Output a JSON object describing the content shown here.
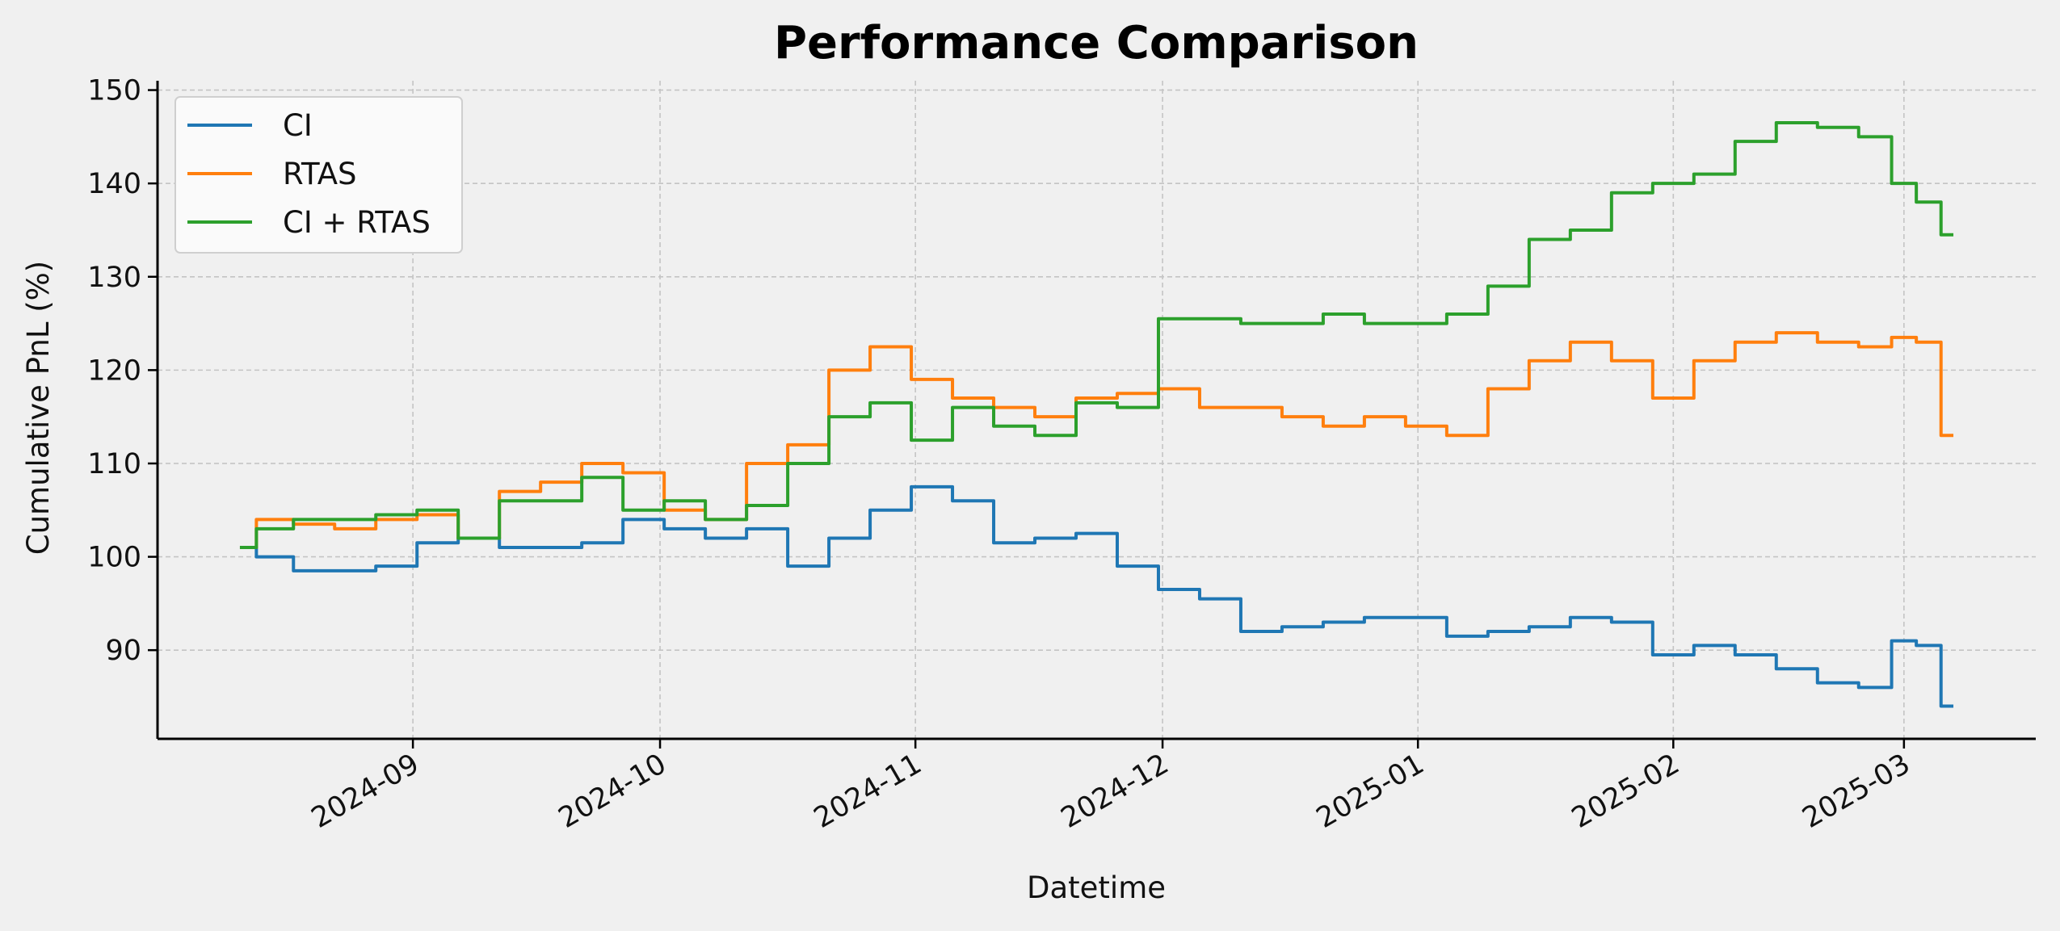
{
  "chart_data": {
    "type": "line",
    "title": "Performance Comparison",
    "xlabel": "Datetime",
    "ylabel": "Cumulative PnL (%)",
    "x_type": "date",
    "xlim": [
      "2024-08-01",
      "2025-03-17"
    ],
    "ylim": [
      80.5,
      151
    ],
    "xticks": [
      "2024-09-01",
      "2024-10-01",
      "2024-11-01",
      "2024-12-01",
      "2025-01-01",
      "2025-02-01",
      "2025-03-01"
    ],
    "xtick_labels": [
      "2024-09",
      "2024-10",
      "2024-11",
      "2024-12",
      "2025-01",
      "2025-02",
      "2025-03"
    ],
    "yticks": [
      90,
      100,
      110,
      120,
      130,
      140,
      150
    ],
    "grid": true,
    "legend_position": "top-left",
    "x": [
      "2024-08-11",
      "2024-08-15",
      "2024-08-20",
      "2024-08-25",
      "2024-08-30",
      "2024-09-04",
      "2024-09-09",
      "2024-09-14",
      "2024-09-19",
      "2024-09-24",
      "2024-09-29",
      "2024-10-04",
      "2024-10-09",
      "2024-10-14",
      "2024-10-19",
      "2024-10-24",
      "2024-10-29",
      "2024-11-03",
      "2024-11-08",
      "2024-11-13",
      "2024-11-18",
      "2024-11-23",
      "2024-11-28",
      "2024-12-03",
      "2024-12-08",
      "2024-12-13",
      "2024-12-18",
      "2024-12-23",
      "2024-12-28",
      "2025-01-02",
      "2025-01-07",
      "2025-01-12",
      "2025-01-17",
      "2025-01-22",
      "2025-01-27",
      "2025-02-01",
      "2025-02-06",
      "2025-02-11",
      "2025-02-16",
      "2025-02-21",
      "2025-02-26",
      "2025-03-01",
      "2025-03-04",
      "2025-03-07"
    ],
    "series": [
      {
        "name": "CI",
        "color": "#1f77b4",
        "values": [
          101,
          100,
          98.5,
          98.5,
          99,
          101.5,
          102,
          101,
          101,
          101.5,
          104,
          103,
          102,
          103,
          99,
          102,
          105,
          107.5,
          106,
          101.5,
          102,
          102.5,
          99,
          96.5,
          95.5,
          92,
          92.5,
          93,
          93.5,
          93.5,
          91.5,
          92,
          92.5,
          93.5,
          93,
          89.5,
          90.5,
          89.5,
          88,
          86.5,
          86,
          91,
          90.5,
          84
        ]
      },
      {
        "name": "RTAS",
        "color": "#ff7f0e",
        "values": [
          101,
          104,
          103.5,
          103,
          104,
          104.5,
          102,
          107,
          108,
          110,
          109,
          105,
          104,
          110,
          112,
          120,
          122.5,
          119,
          117,
          116,
          115,
          117,
          117.5,
          118,
          116,
          116,
          115,
          114,
          115,
          114,
          113,
          118,
          121,
          123,
          121,
          117,
          121,
          123,
          124,
          123,
          122.5,
          123.5,
          123,
          113
        ]
      },
      {
        "name": "CI + RTAS",
        "color": "#2ca02c",
        "values": [
          101,
          103,
          104,
          104,
          104.5,
          105,
          102,
          106,
          106,
          108.5,
          105,
          106,
          104,
          105.5,
          110,
          115,
          116.5,
          112.5,
          116,
          114,
          113,
          116.5,
          116,
          125.5,
          125.5,
          125,
          125,
          126,
          125,
          125,
          126,
          129,
          134,
          135,
          139,
          140,
          141,
          144.5,
          146.5,
          146,
          145,
          140,
          138,
          134.5
        ]
      }
    ]
  }
}
